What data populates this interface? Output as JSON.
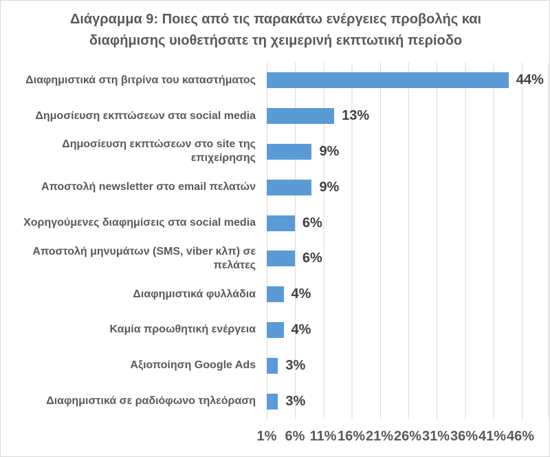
{
  "title": {
    "full": "Διάγραμμα 9: Ποιες από τις παρακάτω ενέργειες προβολής και διαφήμισης υιοθετήσατε τη χειμερινή εκπτωτική περίοδο",
    "line1": "Διάγραμμα 9: Ποιες από τις παρακάτω ενέργειες προβολής και",
    "line2": "διαφήμισης υιοθετήσατε τη χειμερινή εκπτωτική περίοδο"
  },
  "chart_data": {
    "type": "bar",
    "orientation": "horizontal",
    "title": "Διάγραμμα 9: Ποιες από τις παρακάτω ενέργειες προβολής και διαφήμισης υιοθετήσατε τη χειμερινή εκπτωτική περίοδο",
    "categories": [
      "Διαφημιστικά στη βιτρίνα του καταστήματος",
      "Δημοσίευση εκπτώσεων στα social media",
      "Δημοσίευση εκπτώσεων στο site της επιχείρησης",
      "Αποστολή newsletter στο email πελατών",
      "Χορηγούμενες διαφημίσεις στα social media",
      "Αποστολή μηνυμάτων (SMS, viber κλπ) σε πελάτες",
      "Διαφημιστικά φυλλάδια",
      "Καμία προωθητική ενέργεια",
      "Αξιοποίηση Google Ads",
      "Διαφημιστικά σε ραδιόφωνο τηλεόραση"
    ],
    "values": [
      44,
      13,
      9,
      9,
      6,
      6,
      4,
      4,
      3,
      3
    ],
    "value_labels": [
      "44%",
      "13%",
      "9%",
      "9%",
      "6%",
      "6%",
      "4%",
      "4%",
      "3%",
      "3%"
    ],
    "x_ticks": [
      "1%",
      "6%",
      "11%",
      "16%",
      "21%",
      "26%",
      "31%",
      "36%",
      "41%",
      "46%"
    ],
    "axis": {
      "min": 1,
      "max": 51,
      "step": 5,
      "unit": "%"
    },
    "grid": true,
    "legend": "none",
    "bar_color": "#5b9bd5",
    "gridline_color": "#d9d9d9",
    "title_color": "#595959",
    "category_color": "#595959",
    "tick_color": "#595959",
    "value_label_color": "#404040"
  }
}
